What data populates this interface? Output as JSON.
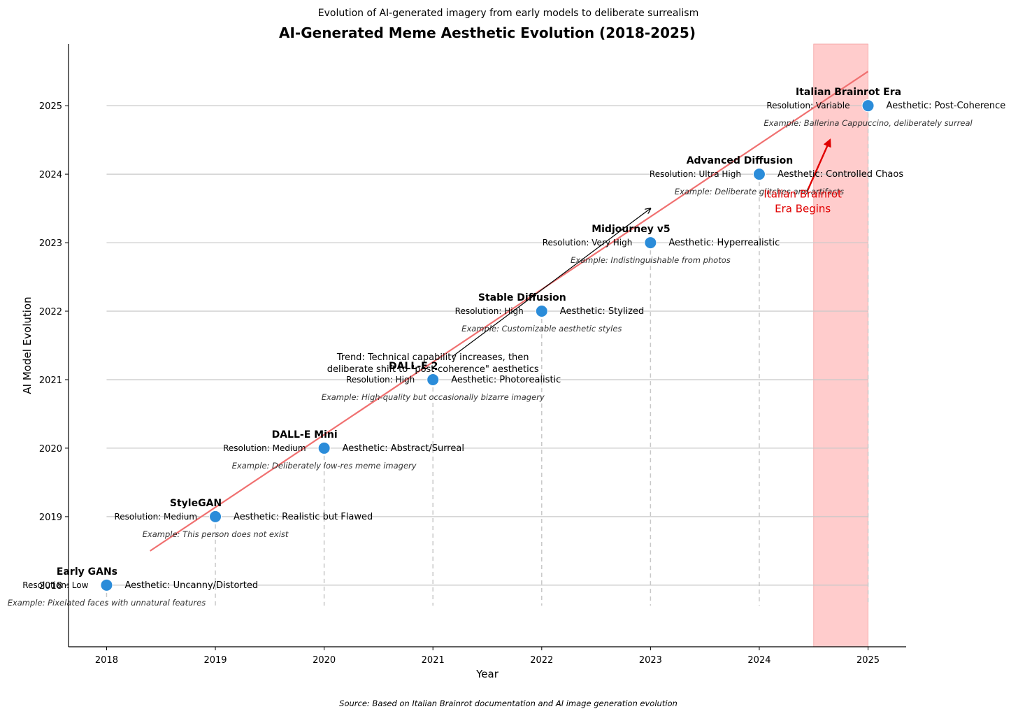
{
  "subtitle": "Evolution of AI-generated imagery from early models to deliberate surrealism",
  "source": "Source: Based on Italian Brainrot documentation and AI image generation evolution",
  "chart_data": {
    "type": "scatter",
    "title": "AI-Generated Meme Aesthetic Evolution (2018-2025)",
    "xlabel": "Year",
    "ylabel": "AI Model Evolution",
    "xlim": [
      2017.65,
      2025.35
    ],
    "ylim": [
      2017.1,
      2025.9
    ],
    "xticks": [
      "2018",
      "2019",
      "2020",
      "2021",
      "2022",
      "2023",
      "2024",
      "2025"
    ],
    "yticks": [
      "2018",
      "2019",
      "2020",
      "2021",
      "2022",
      "2023",
      "2024",
      "2025"
    ],
    "grid": "horizontal",
    "marker_color": "#2b8cd9",
    "points": [
      {
        "x": 2018,
        "y": 2018,
        "name": "Early GANs",
        "resolution": "Resolution: Low",
        "aesthetic": "Aesthetic: Uncanny/Distorted",
        "example": "Example: Pixelated faces with unnatural features"
      },
      {
        "x": 2019,
        "y": 2019,
        "name": "StyleGAN",
        "resolution": "Resolution: Medium",
        "aesthetic": "Aesthetic: Realistic but Flawed",
        "example": "Example: This person does not exist"
      },
      {
        "x": 2020,
        "y": 2020,
        "name": "DALL-E Mini",
        "resolution": "Resolution: Medium",
        "aesthetic": "Aesthetic: Abstract/Surreal",
        "example": "Example: Deliberately low-res meme imagery"
      },
      {
        "x": 2021,
        "y": 2021,
        "name": "DALL-E 2",
        "resolution": "Resolution: High",
        "aesthetic": "Aesthetic: Photorealistic",
        "example": "Example: High-quality but occasionally bizarre imagery"
      },
      {
        "x": 2022,
        "y": 2022,
        "name": "Stable Diffusion",
        "resolution": "Resolution: High",
        "aesthetic": "Aesthetic: Stylized",
        "example": "Example: Customizable aesthetic styles"
      },
      {
        "x": 2023,
        "y": 2023,
        "name": "Midjourney v5",
        "resolution": "Resolution: Very High",
        "aesthetic": "Aesthetic: Hyperrealistic",
        "example": "Example: Indistinguishable from photos"
      },
      {
        "x": 2024,
        "y": 2024,
        "name": "Advanced Diffusion",
        "resolution": "Resolution: Ultra High",
        "aesthetic": "Aesthetic: Controlled Chaos",
        "example": "Example: Deliberate glitches and artifacts"
      },
      {
        "x": 2025,
        "y": 2025,
        "name": "Italian Brainrot Era",
        "resolution": "Resolution: Variable",
        "aesthetic": "Aesthetic: Post-Coherence",
        "example": "Example: Ballerina Cappuccino, deliberately surreal"
      }
    ],
    "trend_line": {
      "x": [
        2018.4,
        2025
      ],
      "y": [
        2018.5,
        2025.5
      ],
      "color": "#f07070"
    },
    "highlight_span": {
      "x": [
        2024.5,
        2025
      ],
      "color": "#ffcccc"
    },
    "annotations": [
      {
        "text_lines": [
          "Trend: Technical capability increases, then",
          "deliberate shift to \"post-coherence\" aesthetics"
        ],
        "at": [
          2021,
          2021.2
        ],
        "arrow_to": [
          2023,
          2023.5
        ],
        "color": "#000000"
      },
      {
        "text_lines": [
          "Italian Brainrot",
          "Era Begins"
        ],
        "at": [
          2024.4,
          2023.55
        ],
        "arrow_to": [
          2024.65,
          2024.5
        ],
        "color": "#e00000"
      }
    ]
  }
}
